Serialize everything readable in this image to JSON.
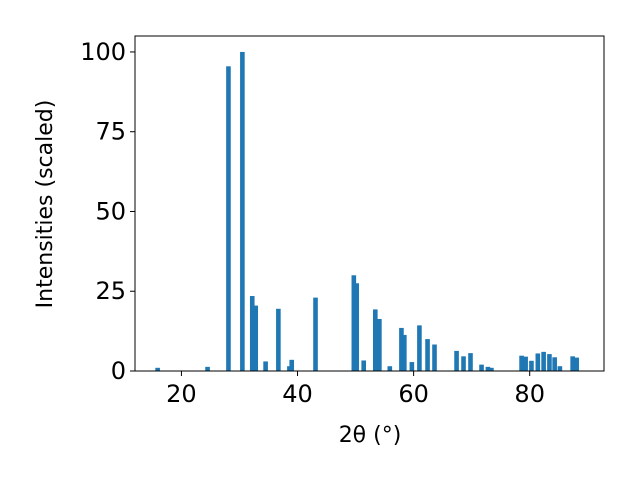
{
  "chart_data": {
    "type": "bar",
    "xlabel": "2θ (°)",
    "ylabel": "Intensities (scaled)",
    "color": "#1f77b4",
    "x": [
      15.9,
      24.5,
      28.1,
      30.5,
      32.2,
      32.8,
      34.5,
      36.7,
      38.6,
      39.0,
      43.1,
      49.7,
      50.2,
      51.4,
      53.4,
      54.1,
      55.9,
      57.9,
      58.4,
      59.7,
      61.0,
      62.4,
      63.6,
      67.4,
      68.6,
      69.8,
      71.7,
      72.8,
      73.4,
      78.6,
      79.3,
      80.3,
      81.4,
      82.4,
      83.4,
      84.3,
      85.2,
      87.4,
      88.1
    ],
    "values": [
      1,
      1.3,
      95.5,
      100,
      23.5,
      20.5,
      3,
      19.5,
      1.5,
      3.5,
      23,
      30,
      27.5,
      3.3,
      19.3,
      16.3,
      1.5,
      13.5,
      11.3,
      2.8,
      14.3,
      10,
      8.3,
      6.3,
      4.6,
      5.6,
      2,
      1.3,
      1,
      4.8,
      4.5,
      3.2,
      5.5,
      6,
      5.3,
      4.3,
      1.5,
      4.6,
      4.2
    ],
    "xlim": [
      12,
      92.8
    ],
    "xticks": [
      20,
      40,
      60,
      80
    ],
    "ylim": [
      0,
      105
    ],
    "yticks": [
      0,
      25,
      50,
      75,
      100
    ],
    "grid": false
  }
}
